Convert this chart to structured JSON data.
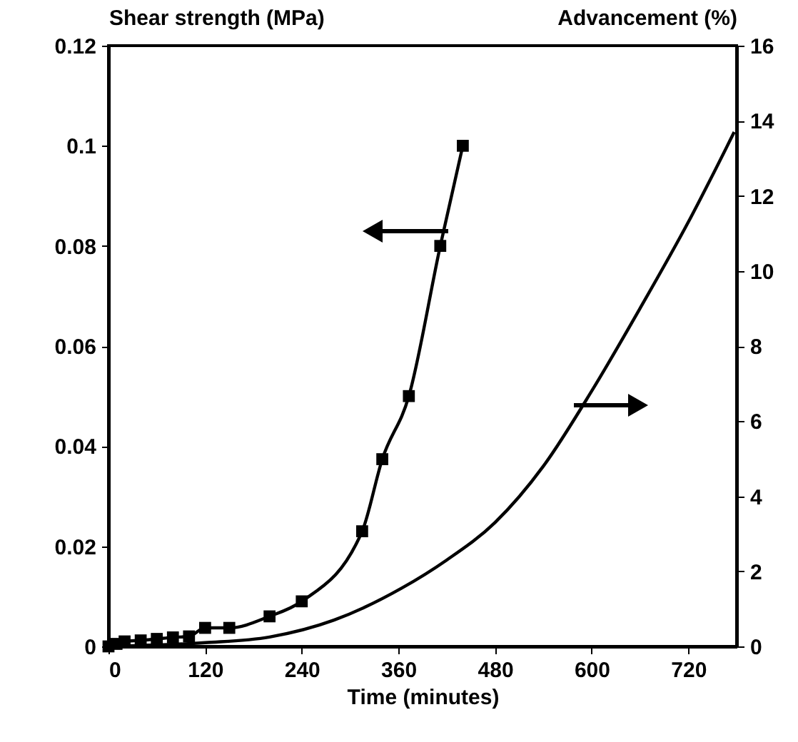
{
  "chart_data": {
    "type": "line",
    "xlabel": "Time (minutes)",
    "ylabel": "Shear strength (MPa)",
    "y2label": "Advancement (%)",
    "xlim": [
      0,
      780
    ],
    "xticks": [
      0,
      120,
      240,
      360,
      480,
      600,
      720
    ],
    "ylim": [
      0,
      0.12
    ],
    "yticks": [
      0,
      0.02,
      0.04,
      0.06,
      0.08,
      0.1,
      0.12
    ],
    "y2lim": [
      0,
      16
    ],
    "y2ticks": [
      0,
      2,
      4,
      6,
      8,
      10,
      12,
      14,
      16
    ],
    "grid": false,
    "series": [
      {
        "color": "#000000",
        "marker": "square",
        "axis": "y",
        "x": [
          0,
          10,
          20,
          40,
          60,
          80,
          100,
          120,
          150,
          200,
          240,
          315,
          340,
          373,
          412,
          440
        ],
        "values": [
          0,
          0.0005,
          0.001,
          0.0012,
          0.0015,
          0.0018,
          0.002,
          0.0037,
          0.0037,
          0.006,
          0.009,
          0.023,
          0.0374,
          0.05,
          0.08,
          0.1
        ]
      },
      {
        "color": "#000000",
        "marker": "none",
        "axis": "y2",
        "x": [
          0,
          120,
          200,
          280,
          364,
          420,
          480,
          540,
          600,
          660,
          720,
          777
        ],
        "values": [
          0,
          0.1,
          0.25,
          0.7,
          1.55,
          2.3,
          3.3,
          4.8,
          6.8,
          9.0,
          11.3,
          13.7
        ]
      }
    ]
  }
}
